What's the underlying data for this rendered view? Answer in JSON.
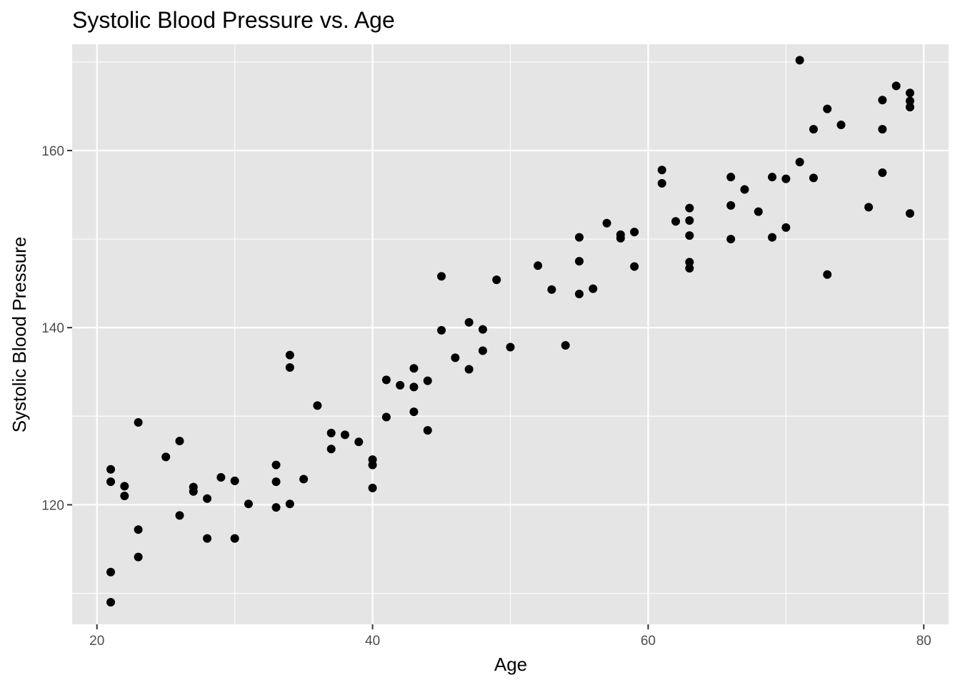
{
  "chart_data": {
    "type": "scatter",
    "title": "Systolic Blood Pressure vs. Age",
    "xlabel": "Age",
    "ylabel": "Systolic Blood Pressure",
    "xlim": [
      18.2,
      81.8
    ],
    "ylim": [
      106.5,
      172.0
    ],
    "x_ticks": [
      20,
      40,
      60,
      80
    ],
    "y_ticks": [
      120,
      140,
      160
    ],
    "grid": true,
    "panel_color": "#e5e5e5",
    "grid_color": "#ffffff",
    "point_color": "#000000",
    "points": [
      {
        "x": 21,
        "y": 109.0
      },
      {
        "x": 21,
        "y": 112.4
      },
      {
        "x": 21,
        "y": 122.6
      },
      {
        "x": 21,
        "y": 124.0
      },
      {
        "x": 22,
        "y": 121.0
      },
      {
        "x": 22,
        "y": 122.1
      },
      {
        "x": 23,
        "y": 114.1
      },
      {
        "x": 23,
        "y": 117.2
      },
      {
        "x": 23,
        "y": 129.3
      },
      {
        "x": 25,
        "y": 125.4
      },
      {
        "x": 26,
        "y": 118.8
      },
      {
        "x": 26,
        "y": 127.2
      },
      {
        "x": 27,
        "y": 121.5
      },
      {
        "x": 27,
        "y": 122.0
      },
      {
        "x": 28,
        "y": 116.2
      },
      {
        "x": 28,
        "y": 120.7
      },
      {
        "x": 29,
        "y": 123.1
      },
      {
        "x": 30,
        "y": 116.2
      },
      {
        "x": 30,
        "y": 122.7
      },
      {
        "x": 31,
        "y": 120.1
      },
      {
        "x": 33,
        "y": 119.7
      },
      {
        "x": 33,
        "y": 122.6
      },
      {
        "x": 33,
        "y": 124.5
      },
      {
        "x": 34,
        "y": 120.1
      },
      {
        "x": 34,
        "y": 135.5
      },
      {
        "x": 34,
        "y": 136.9
      },
      {
        "x": 35,
        "y": 122.9
      },
      {
        "x": 36,
        "y": 131.2
      },
      {
        "x": 37,
        "y": 126.3
      },
      {
        "x": 37,
        "y": 128.1
      },
      {
        "x": 38,
        "y": 127.9
      },
      {
        "x": 39,
        "y": 127.1
      },
      {
        "x": 40,
        "y": 121.9
      },
      {
        "x": 40,
        "y": 124.5
      },
      {
        "x": 40,
        "y": 125.1
      },
      {
        "x": 41,
        "y": 129.9
      },
      {
        "x": 41,
        "y": 134.1
      },
      {
        "x": 42,
        "y": 133.5
      },
      {
        "x": 43,
        "y": 130.5
      },
      {
        "x": 43,
        "y": 133.3
      },
      {
        "x": 43,
        "y": 135.4
      },
      {
        "x": 44,
        "y": 128.4
      },
      {
        "x": 44,
        "y": 134.0
      },
      {
        "x": 45,
        "y": 139.7
      },
      {
        "x": 45,
        "y": 145.8
      },
      {
        "x": 46,
        "y": 136.6
      },
      {
        "x": 47,
        "y": 135.3
      },
      {
        "x": 47,
        "y": 140.6
      },
      {
        "x": 48,
        "y": 137.4
      },
      {
        "x": 48,
        "y": 139.8
      },
      {
        "x": 49,
        "y": 145.4
      },
      {
        "x": 50,
        "y": 137.8
      },
      {
        "x": 52,
        "y": 147.0
      },
      {
        "x": 53,
        "y": 144.3
      },
      {
        "x": 54,
        "y": 138.0
      },
      {
        "x": 55,
        "y": 143.8
      },
      {
        "x": 55,
        "y": 147.5
      },
      {
        "x": 55,
        "y": 150.2
      },
      {
        "x": 56,
        "y": 144.4
      },
      {
        "x": 57,
        "y": 151.8
      },
      {
        "x": 58,
        "y": 150.1
      },
      {
        "x": 58,
        "y": 150.5
      },
      {
        "x": 59,
        "y": 146.9
      },
      {
        "x": 59,
        "y": 150.8
      },
      {
        "x": 61,
        "y": 156.3
      },
      {
        "x": 61,
        "y": 157.8
      },
      {
        "x": 62,
        "y": 152.0
      },
      {
        "x": 63,
        "y": 146.7
      },
      {
        "x": 63,
        "y": 147.4
      },
      {
        "x": 63,
        "y": 150.4
      },
      {
        "x": 63,
        "y": 152.1
      },
      {
        "x": 63,
        "y": 153.5
      },
      {
        "x": 66,
        "y": 150.0
      },
      {
        "x": 66,
        "y": 153.8
      },
      {
        "x": 66,
        "y": 157.0
      },
      {
        "x": 67,
        "y": 155.6
      },
      {
        "x": 68,
        "y": 153.1
      },
      {
        "x": 69,
        "y": 150.2
      },
      {
        "x": 69,
        "y": 157.0
      },
      {
        "x": 70,
        "y": 151.3
      },
      {
        "x": 70,
        "y": 156.8
      },
      {
        "x": 71,
        "y": 158.7
      },
      {
        "x": 71,
        "y": 170.2
      },
      {
        "x": 72,
        "y": 156.9
      },
      {
        "x": 72,
        "y": 162.4
      },
      {
        "x": 73,
        "y": 146.0
      },
      {
        "x": 73,
        "y": 164.7
      },
      {
        "x": 74,
        "y": 162.9
      },
      {
        "x": 76,
        "y": 153.6
      },
      {
        "x": 77,
        "y": 157.5
      },
      {
        "x": 77,
        "y": 162.4
      },
      {
        "x": 77,
        "y": 165.7
      },
      {
        "x": 78,
        "y": 167.3
      },
      {
        "x": 79,
        "y": 152.9
      },
      {
        "x": 79,
        "y": 164.9
      },
      {
        "x": 79,
        "y": 165.6
      },
      {
        "x": 79,
        "y": 166.5
      }
    ]
  }
}
